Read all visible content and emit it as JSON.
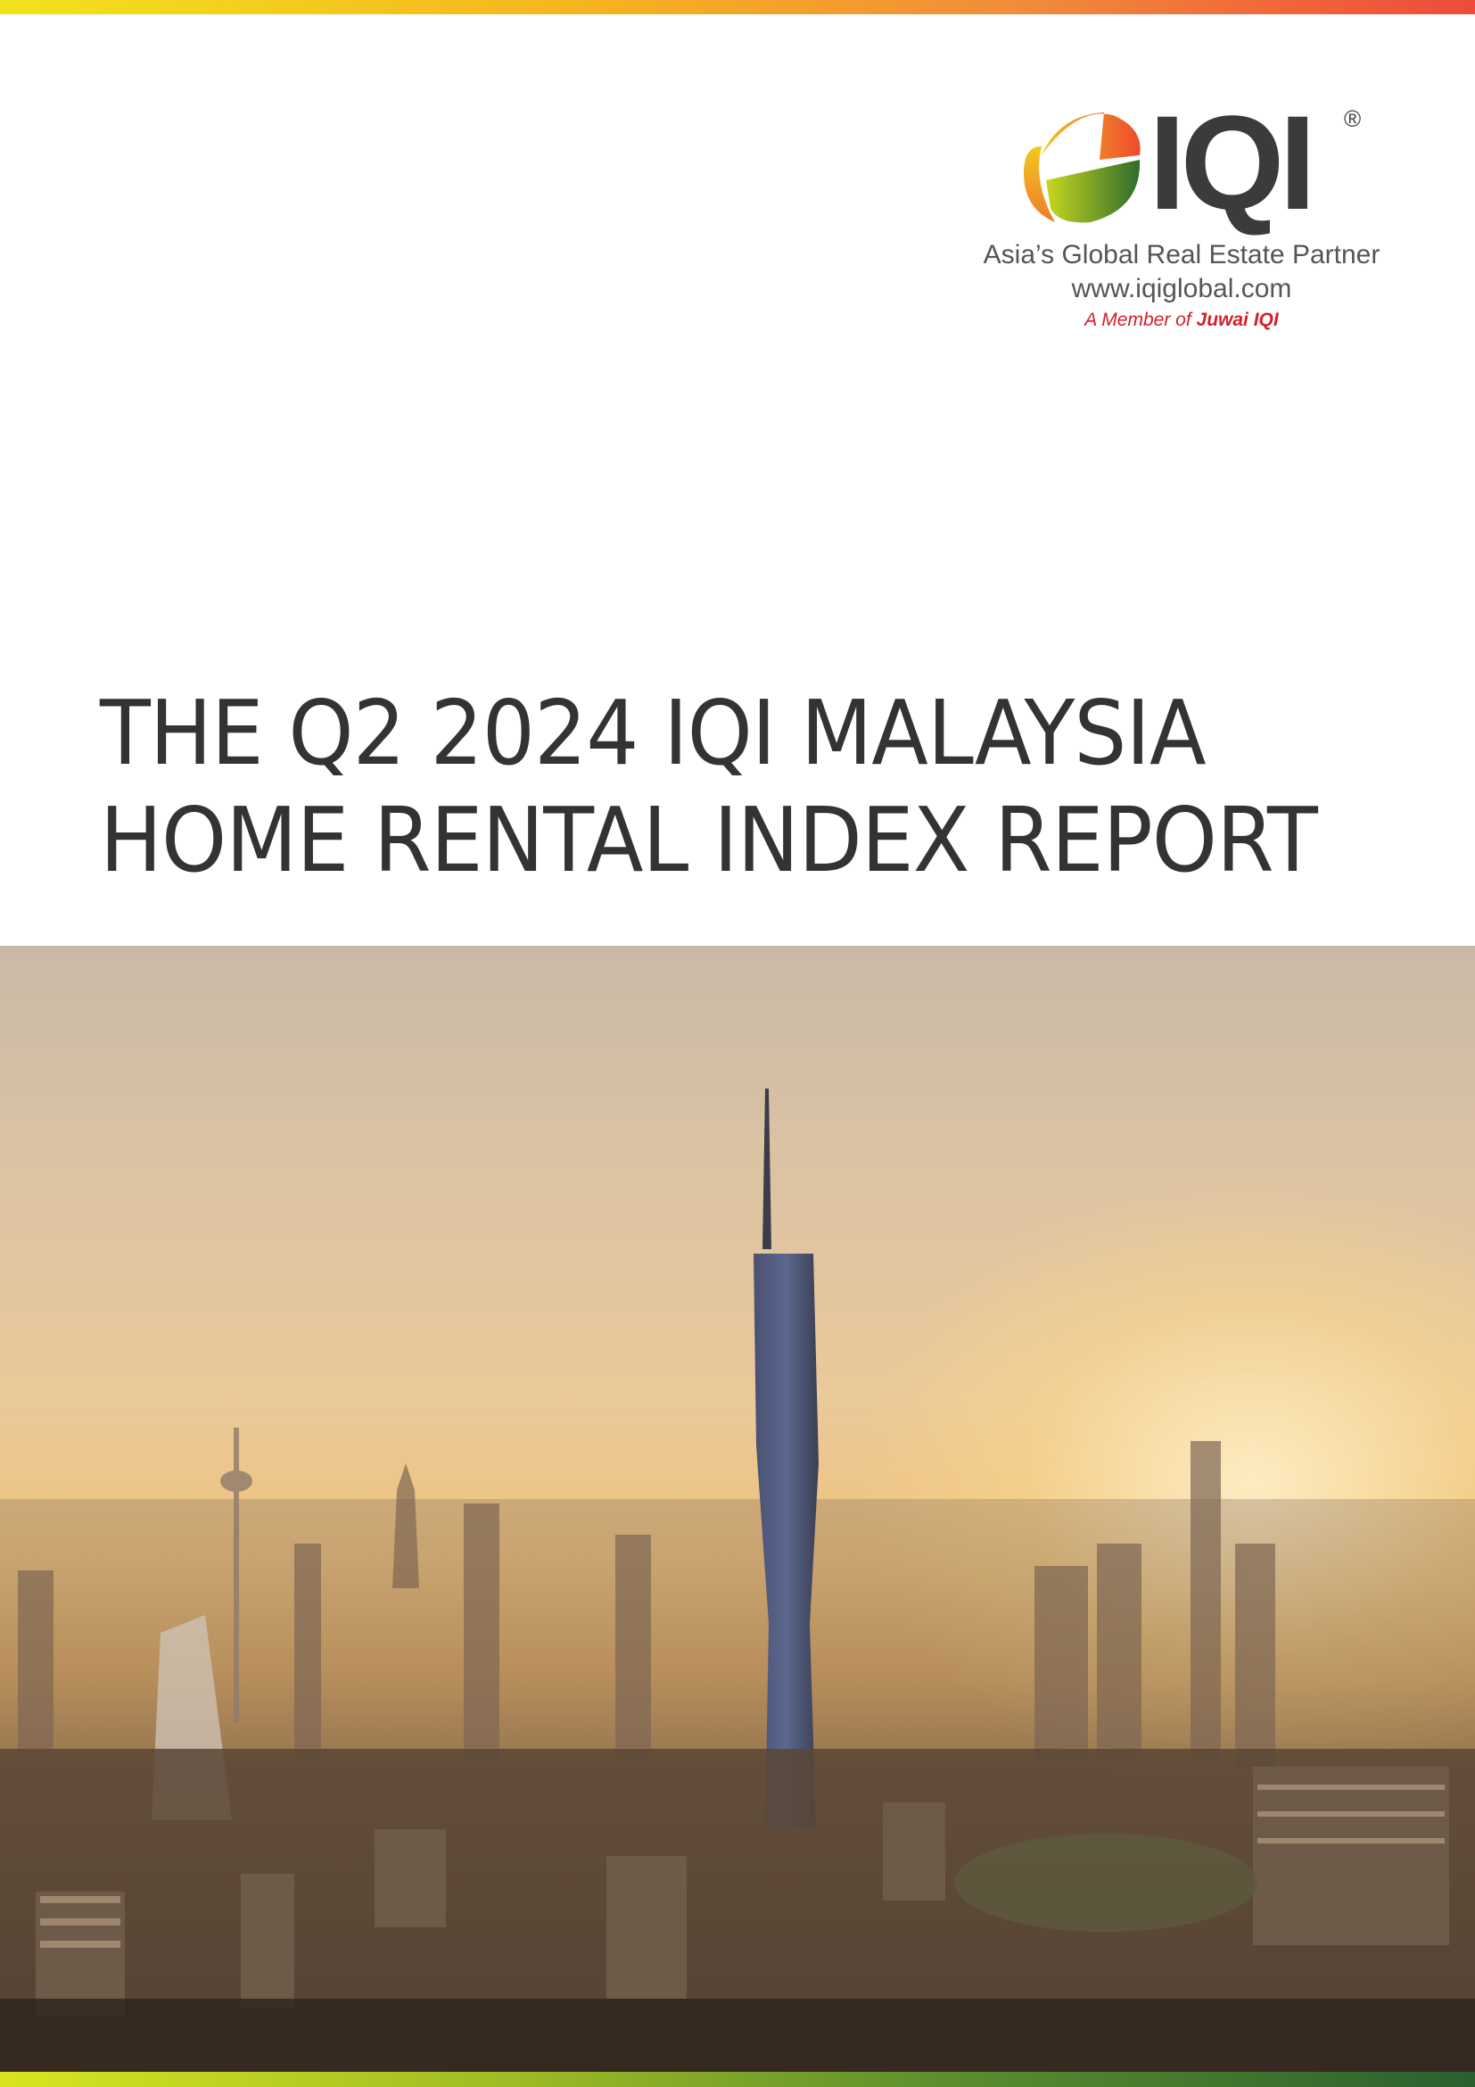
{
  "brand": {
    "logo_text": "IQI",
    "registered_mark": "®",
    "tagline": "Asia’s Global Real Estate Partner",
    "website": "www.iqiglobal.com",
    "member_prefix": "A Member of",
    "member_brand": "Juwai IQI"
  },
  "title": {
    "line1": "THE Q2 2024 IQI MALAYSIA",
    "line2": "HOME RENTAL INDEX REPORT"
  },
  "cover_image": {
    "description_icon": "city-skyline-image"
  },
  "colors": {
    "accent_red": "#d3202c",
    "text_dark": "#333333"
  }
}
